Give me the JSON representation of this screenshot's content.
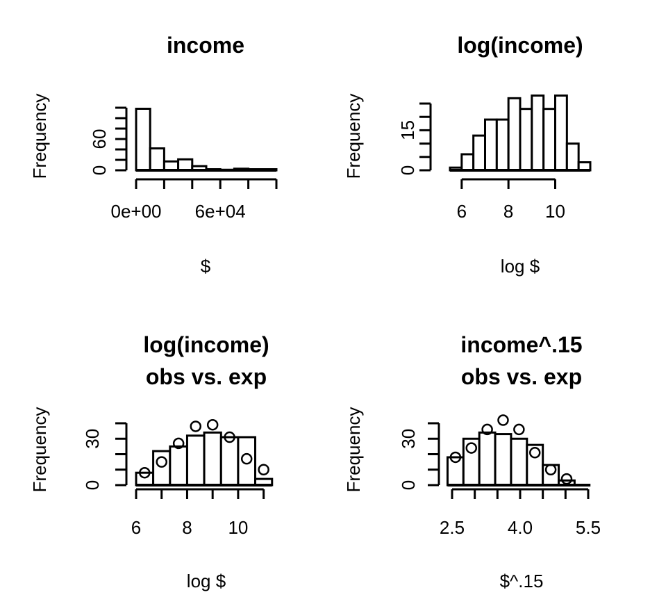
{
  "chart_data": [
    {
      "type": "bar",
      "title": [
        "income"
      ],
      "xlabel": "$",
      "ylabel": "Frequency",
      "xlim": [
        0,
        100000
      ],
      "ylim": [
        0,
        120
      ],
      "xticks": [
        "0e+00",
        "6e+04"
      ],
      "xtick_values": [
        0,
        60000
      ],
      "xminor": [
        20000,
        40000,
        80000,
        100000
      ],
      "yticks": [
        {
          "value": 0,
          "label": "0"
        },
        {
          "value": 60,
          "label": "60"
        }
      ],
      "yminor": [
        20,
        40,
        80,
        100,
        120
      ],
      "bin_edges": [
        0,
        10000,
        20000,
        30000,
        40000,
        50000,
        60000,
        70000,
        80000,
        90000,
        100000
      ],
      "values": [
        118,
        42,
        17,
        21,
        8,
        2,
        1,
        3,
        2,
        2
      ],
      "expected": []
    },
    {
      "type": "bar",
      "title": [
        "log(income)"
      ],
      "xlabel": "log $",
      "ylabel": "Frequency",
      "xlim": [
        5.5,
        11.5
      ],
      "ylim": [
        0,
        25
      ],
      "xticks": [
        "6",
        "8",
        "10"
      ],
      "xtick_values": [
        6,
        8,
        10
      ],
      "xminor": [],
      "yticks": [
        {
          "value": 0,
          "label": "0"
        },
        {
          "value": 15,
          "label": "15"
        }
      ],
      "yminor": [
        5,
        10,
        20,
        25
      ],
      "bin_edges": [
        5.5,
        6.0,
        6.5,
        7.0,
        7.5,
        8.0,
        8.5,
        9.0,
        9.5,
        10.0,
        10.5,
        11.0,
        11.5
      ],
      "values": [
        1,
        6,
        13,
        19,
        19,
        27,
        23,
        28,
        23,
        28,
        10,
        3
      ],
      "expected": []
    },
    {
      "type": "bar",
      "title": [
        "log(income)",
        "obs vs. exp"
      ],
      "xlabel": "log $",
      "ylabel": "Frequency",
      "xlim": [
        6,
        11.5
      ],
      "ylim": [
        0,
        40
      ],
      "xticks": [
        "6",
        "8",
        "10"
      ],
      "xtick_values": [
        6,
        8,
        10
      ],
      "xminor": [
        7,
        9,
        11
      ],
      "yticks": [
        {
          "value": 0,
          "label": "0"
        },
        {
          "value": 30,
          "label": "30"
        }
      ],
      "yminor": [
        10,
        20,
        40
      ],
      "bin_edges": [
        6.0,
        6.67,
        7.33,
        8.0,
        8.67,
        9.33,
        10.0,
        10.67,
        11.33
      ],
      "values": [
        8,
        22,
        25,
        32,
        34,
        31,
        31,
        4
      ],
      "expected": [
        8,
        15,
        27,
        38,
        39,
        31,
        17,
        10
      ]
    },
    {
      "type": "bar",
      "title": [
        "income^.15",
        "obs vs. exp"
      ],
      "xlabel": "$^.15",
      "ylabel": "Frequency",
      "xlim": [
        2.5,
        5.5
      ],
      "ylim": [
        0,
        40
      ],
      "xticks": [
        "2.5",
        "4.0",
        "5.5"
      ],
      "xtick_values": [
        2.5,
        4.0,
        5.5
      ],
      "xminor": [
        3.0,
        3.5,
        4.5,
        5.0
      ],
      "yticks": [
        {
          "value": 0,
          "label": "0"
        },
        {
          "value": 30,
          "label": "30"
        }
      ],
      "yminor": [
        10,
        20,
        40
      ],
      "bin_edges": [
        2.4,
        2.75,
        3.1,
        3.45,
        3.8,
        4.15,
        4.5,
        4.85,
        5.2,
        5.55
      ],
      "values": [
        18,
        30,
        34,
        33,
        30,
        26,
        13,
        3,
        0
      ],
      "expected": [
        18,
        24,
        36,
        42,
        36,
        21,
        10,
        4,
        0
      ]
    }
  ]
}
